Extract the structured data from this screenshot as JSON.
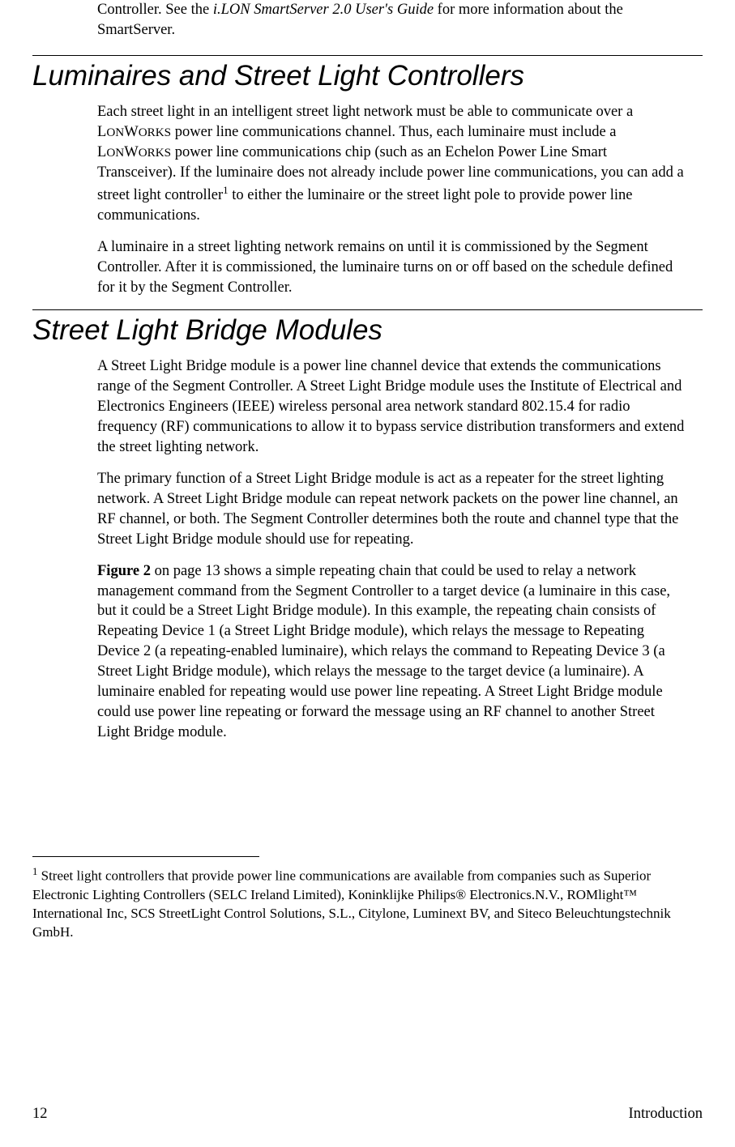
{
  "intro": {
    "text_before_italic": "Controller.  See the ",
    "italic_text": "i.LON SmartServer 2.0 User's Guide",
    "text_after_italic": " for more information about the SmartServer."
  },
  "section1": {
    "heading": "Luminaires and Street Light Controllers",
    "para1_part1": "Each street light in an intelligent street light network must be able to communicate over a L",
    "para1_sc1": "ON",
    "para1_part2": "W",
    "para1_sc2": "ORKS",
    "para1_part3": " power line communications channel.  Thus, each luminaire must include a L",
    "para1_sc3": "ON",
    "para1_part4": "W",
    "para1_sc4": "ORKS",
    "para1_part5": " power line communications chip (such as an Echelon Power Line Smart Transceiver).  If the luminaire does not already include power line communications, you can add a street light controller",
    "para1_sup": "1",
    "para1_part6": " to either the luminaire or the street light pole to provide power line communications.",
    "para2": "A luminaire in a street lighting network remains on until it is commissioned by the Segment Controller.  After it is commissioned, the luminaire turns on or off based on the schedule defined for it by the Segment Controller."
  },
  "section2": {
    "heading": "Street Light Bridge Modules",
    "para1": "A Street Light Bridge module is a power line channel device that extends the communications range of the Segment Controller.  A Street Light Bridge module uses the Institute of Electrical and Electronics Engineers (IEEE) wireless personal area network standard 802.15.4 for radio frequency (RF) communications to allow it to bypass service distribution transformers and extend the street lighting network.",
    "para2": "The primary function of a Street Light Bridge module is act as a repeater for the street lighting network.  A Street Light Bridge module can repeat network packets on the power line channel, an RF channel, or both.  The Segment Controller determines both the route and channel type that the Street Light Bridge module should use for repeating.",
    "para3_bold": "Figure 2",
    "para3_rest": " on page 13 shows a simple repeating chain that could be used to relay a network management command from the Segment Controller to a target device (a luminaire in this case, but it could be a Street Light Bridge module).  In this example, the repeating chain consists of Repeating Device 1 (a Street Light Bridge module), which relays the message to Repeating Device 2 (a repeating-enabled luminaire), which relays the command to Repeating Device 3 (a Street Light Bridge module), which relays the message to the target device (a luminaire).  A luminaire enabled for repeating would use power line repeating.  A Street Light Bridge module could use power line repeating or forward the message using an RF channel to another Street Light Bridge module."
  },
  "footnote": {
    "sup": "1",
    "text": " Street light controllers that provide power line communications are available from companies such as Superior Electronic Lighting Controllers (SELC Ireland Limited), Koninklijke Philips® Electronics.N.V., ROMlight™ International Inc, SCS StreetLight Control Solutions, S.L., Citylone, Luminext BV, and Siteco Beleuchtungstechnik GmbH."
  },
  "footer": {
    "page": "12",
    "label": "Introduction"
  }
}
